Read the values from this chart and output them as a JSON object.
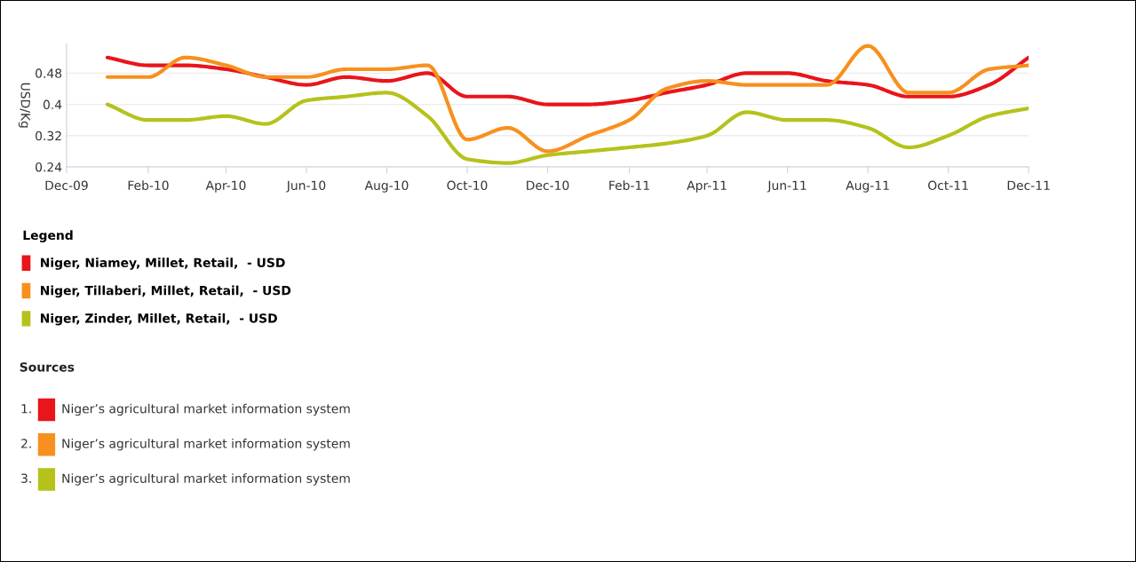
{
  "chart_data": {
    "type": "line",
    "ylabel": "USD/Kg",
    "legend_title": "Legend",
    "legend": "bottom left",
    "grid": "y",
    "marker": "none",
    "line_style": "solid",
    "x": [
      "2010-01",
      "2010-02",
      "2010-03",
      "2010-04",
      "2010-05",
      "2010-06",
      "2010-07",
      "2010-08",
      "2010-09",
      "2010-10",
      "2010-11",
      "2010-12",
      "2011-01",
      "2011-02",
      "2011-03",
      "2011-04",
      "2011-05",
      "2011-06",
      "2011-07",
      "2011-08",
      "2011-09",
      "2011-10",
      "2011-11",
      "2011-12"
    ],
    "series": [
      {
        "name": "Niger, Niamey, Millet, Retail,  - USD",
        "color": "#e8151b",
        "values": [
          0.52,
          0.5,
          0.5,
          0.49,
          0.47,
          0.45,
          0.47,
          0.46,
          0.48,
          0.42,
          0.42,
          0.4,
          0.4,
          0.41,
          0.43,
          0.45,
          0.48,
          0.48,
          0.46,
          0.45,
          0.42,
          0.42,
          0.45,
          0.52
        ]
      },
      {
        "name": "Niger, Tillaberi, Millet, Retail,  - USD",
        "color": "#f7901e",
        "values": [
          0.47,
          0.47,
          0.52,
          0.5,
          0.47,
          0.47,
          0.49,
          0.49,
          0.5,
          0.31,
          0.34,
          0.28,
          0.32,
          0.36,
          0.44,
          0.46,
          0.45,
          0.45,
          0.45,
          0.55,
          0.43,
          0.43,
          0.49,
          0.5
        ]
      },
      {
        "name": "Niger, Zinder, Millet, Retail,  - USD",
        "color": "#b5c21c",
        "values": [
          0.4,
          0.36,
          0.36,
          0.37,
          0.35,
          0.41,
          0.42,
          0.43,
          0.37,
          0.26,
          0.25,
          0.27,
          0.28,
          0.29,
          0.3,
          0.32,
          0.38,
          0.36,
          0.36,
          0.34,
          0.29,
          0.32,
          0.37,
          0.39
        ]
      }
    ],
    "xlim": [
      "2009-12",
      "2011-12"
    ],
    "xticks": [
      {
        "value": "2009-12",
        "label": "Dec-09"
      },
      {
        "value": "2010-02",
        "label": "Feb-10"
      },
      {
        "value": "2010-04",
        "label": "Apr-10"
      },
      {
        "value": "2010-06",
        "label": "Jun-10"
      },
      {
        "value": "2010-08",
        "label": "Aug-10"
      },
      {
        "value": "2010-10",
        "label": "Oct-10"
      },
      {
        "value": "2010-12",
        "label": "Dec-10"
      },
      {
        "value": "2011-02",
        "label": "Feb-11"
      },
      {
        "value": "2011-04",
        "label": "Apr-11"
      },
      {
        "value": "2011-06",
        "label": "Jun-11"
      },
      {
        "value": "2011-08",
        "label": "Aug-11"
      },
      {
        "value": "2011-10",
        "label": "Oct-11"
      },
      {
        "value": "2011-12",
        "label": "Dec-11"
      }
    ],
    "ylim": [
      0.24,
      0.555
    ],
    "yticks": [
      0.24,
      0.32,
      0.4,
      0.48
    ],
    "annotations": [
      "Sources",
      "1. Niger’s agricultural market information system",
      "2. Niger’s agricultural market information system",
      "3. Niger’s agricultural market information system"
    ]
  }
}
